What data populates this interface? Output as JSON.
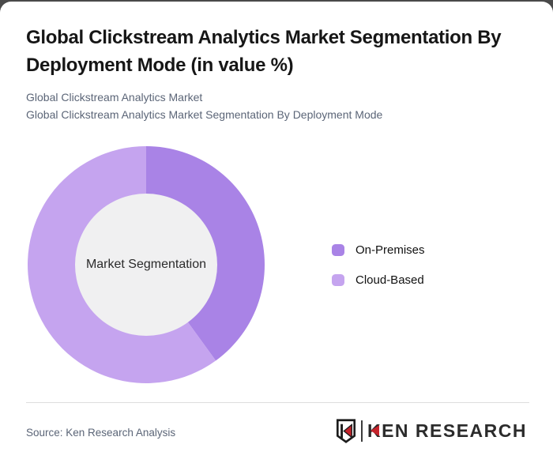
{
  "page": {
    "backdrop_color": "#4a4a4a",
    "card_color": "#ffffff"
  },
  "header": {
    "title": "Global Clickstream Analytics Market Segmentation By Deployment Mode (in value %)",
    "subtitles": [
      "Global Clickstream Analytics Market",
      "Global Clickstream Analytics Market Segmentation By Deployment Mode"
    ]
  },
  "chart_data": {
    "type": "pie",
    "donut": true,
    "title": "Global Clickstream Analytics Market Segmentation By Deployment Mode (in value %)",
    "center_label": "Market Segmentation",
    "unit": "%",
    "start_angle_deg": 0,
    "direction": "clockwise",
    "legend_position": "right",
    "hole_color": "#f0f0f1",
    "series": [
      {
        "name": "On-Premises",
        "value": 40,
        "color": "#a983e6"
      },
      {
        "name": "Cloud-Based",
        "value": 60,
        "color": "#c5a4ef"
      }
    ]
  },
  "legend": {
    "items": [
      {
        "label": "On-Premises",
        "color": "#a983e6"
      },
      {
        "label": "Cloud-Based",
        "color": "#c5a4ef"
      }
    ]
  },
  "footer": {
    "source": "Source: Ken Research Analysis",
    "logo": {
      "mark_letter": "K",
      "text": "KEN RESEARCH",
      "accent_color": "#c5232b",
      "text_color": "#2b2b2b"
    }
  }
}
